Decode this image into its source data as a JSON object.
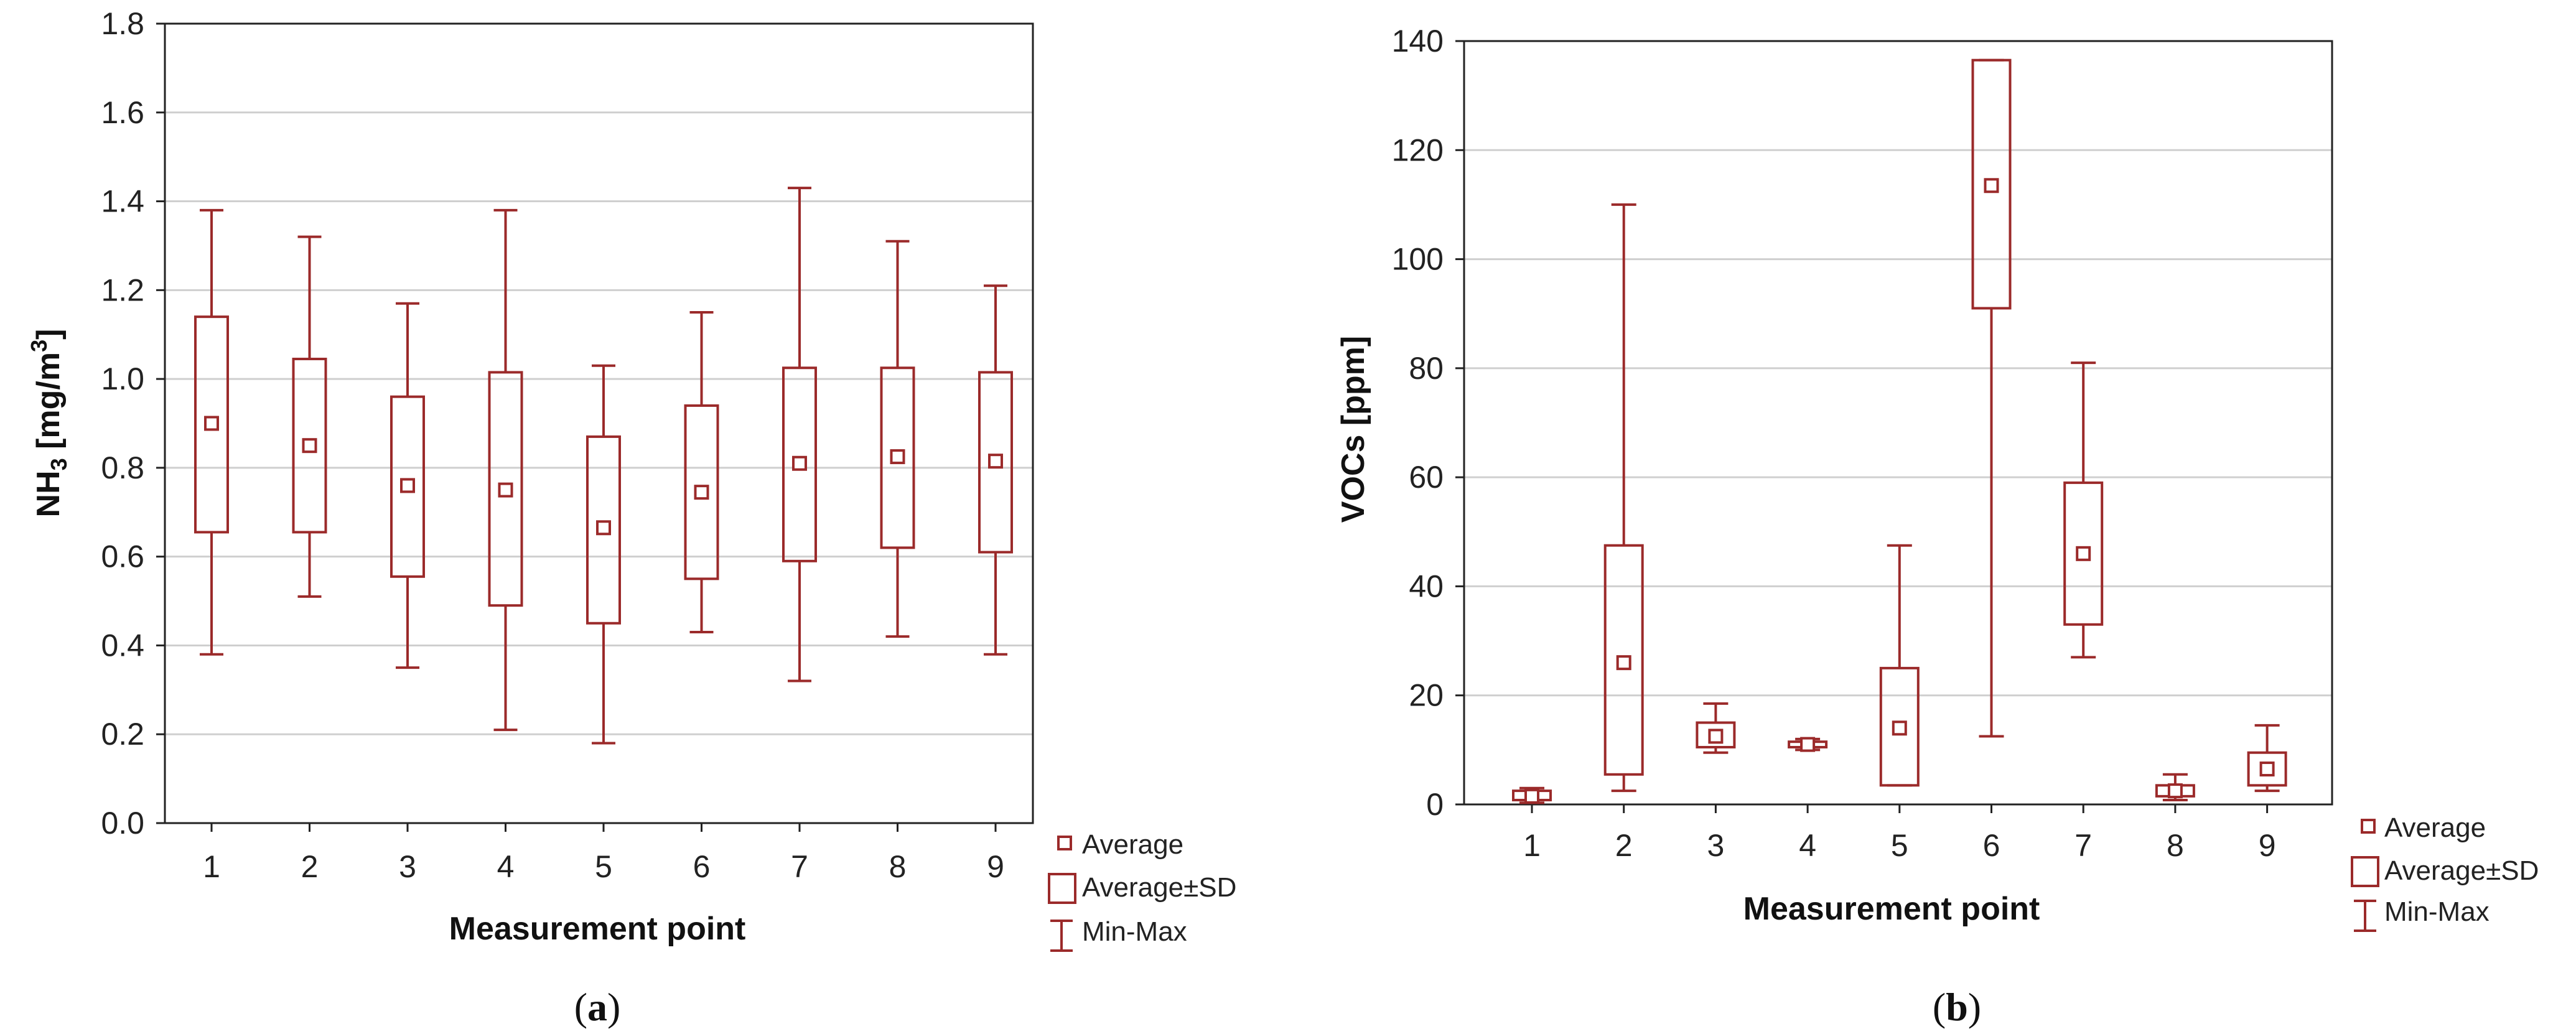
{
  "chart_data": [
    {
      "type": "box",
      "id": "a",
      "caption": "a",
      "ylabel_main": "NH",
      "ylabel_sub": "3",
      "ylabel_mid": " [mg/m",
      "ylabel_sup": "3",
      "ylabel_end": "]",
      "xlabel": "Measurement point",
      "ylim": [
        0,
        1.8
      ],
      "yticks": [
        "0.0",
        "0.2",
        "0.4",
        "0.6",
        "0.8",
        "1.0",
        "1.2",
        "1.4",
        "1.6",
        "1.8"
      ],
      "ytick_values": [
        0,
        0.2,
        0.4,
        0.6,
        0.8,
        1.0,
        1.2,
        1.4,
        1.6,
        1.8
      ],
      "categories": [
        "1",
        "2",
        "3",
        "4",
        "5",
        "6",
        "7",
        "8",
        "9"
      ],
      "average": [
        0.9,
        0.85,
        0.76,
        0.75,
        0.665,
        0.745,
        0.81,
        0.825,
        0.815
      ],
      "sd_low": [
        0.655,
        0.655,
        0.555,
        0.49,
        0.45,
        0.55,
        0.59,
        0.62,
        0.61
      ],
      "sd_high": [
        1.14,
        1.045,
        0.96,
        1.015,
        0.87,
        0.94,
        1.025,
        1.025,
        1.015
      ],
      "min": [
        0.38,
        0.51,
        0.35,
        0.21,
        0.18,
        0.43,
        0.32,
        0.42,
        0.38
      ],
      "max": [
        1.38,
        1.32,
        1.17,
        1.38,
        1.03,
        1.15,
        1.43,
        1.31,
        1.21
      ],
      "legend": [
        "Average",
        "Average±SD",
        "Min-Max"
      ]
    },
    {
      "type": "box",
      "id": "b",
      "caption": "b",
      "ylabel": "VOCs [ppm]",
      "xlabel": "Measurement point",
      "ylim": [
        0,
        140
      ],
      "yticks": [
        "0",
        "20",
        "40",
        "60",
        "80",
        "100",
        "120",
        "140"
      ],
      "ytick_values": [
        0,
        20,
        40,
        60,
        80,
        100,
        120,
        140
      ],
      "categories": [
        "1",
        "2",
        "3",
        "4",
        "5",
        "6",
        "7",
        "8",
        "9"
      ],
      "average": [
        1.5,
        26,
        12.5,
        11,
        14,
        113.5,
        46,
        2.5,
        6.5
      ],
      "sd_low": [
        0.8,
        5.5,
        10.5,
        10.5,
        3.5,
        91,
        33,
        1.5,
        3.5
      ],
      "sd_high": [
        2.5,
        47.5,
        15,
        11.5,
        25,
        136.5,
        59,
        3.5,
        9.5
      ],
      "min": [
        0.3,
        2.5,
        9.5,
        10,
        3.5,
        12.5,
        27,
        0.8,
        2.5
      ],
      "max": [
        3,
        110,
        18.5,
        12,
        47.5,
        136.5,
        81,
        5.5,
        14.5
      ],
      "legend": [
        "Average",
        "Average±SD",
        "Min-Max"
      ]
    }
  ]
}
